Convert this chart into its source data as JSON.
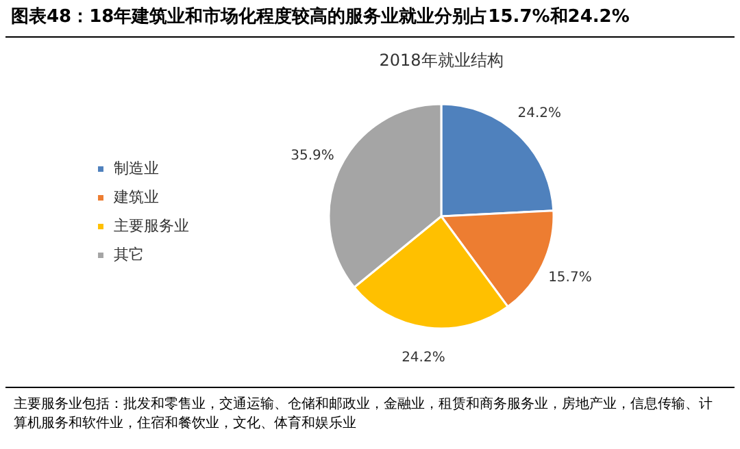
{
  "chart_data": {
    "type": "pie",
    "title": "图表48：18年建筑业和市场化程度较高的服务业就业分别占15.7%和24.2%",
    "subtitle": "2018年就业结构",
    "categories": [
      "制造业",
      "建筑业",
      "主要服务业",
      "其它"
    ],
    "values": [
      24.2,
      15.7,
      24.2,
      35.9
    ],
    "colors": [
      "#4f81bd",
      "#ed7d31",
      "#ffc000",
      "#a5a5a5"
    ],
    "value_labels": [
      "24.2%",
      "15.7%",
      "24.2%",
      "35.9%"
    ],
    "legend": "left",
    "annotations": [
      "主要服务业包括：批发和零售业，交通运输、仓储和邮政业，金融业，租赁和商务服务业，房地产业，信息传输、计算机服务和软件业，住宿和餐饮业，文化、体育和娱乐业"
    ]
  }
}
